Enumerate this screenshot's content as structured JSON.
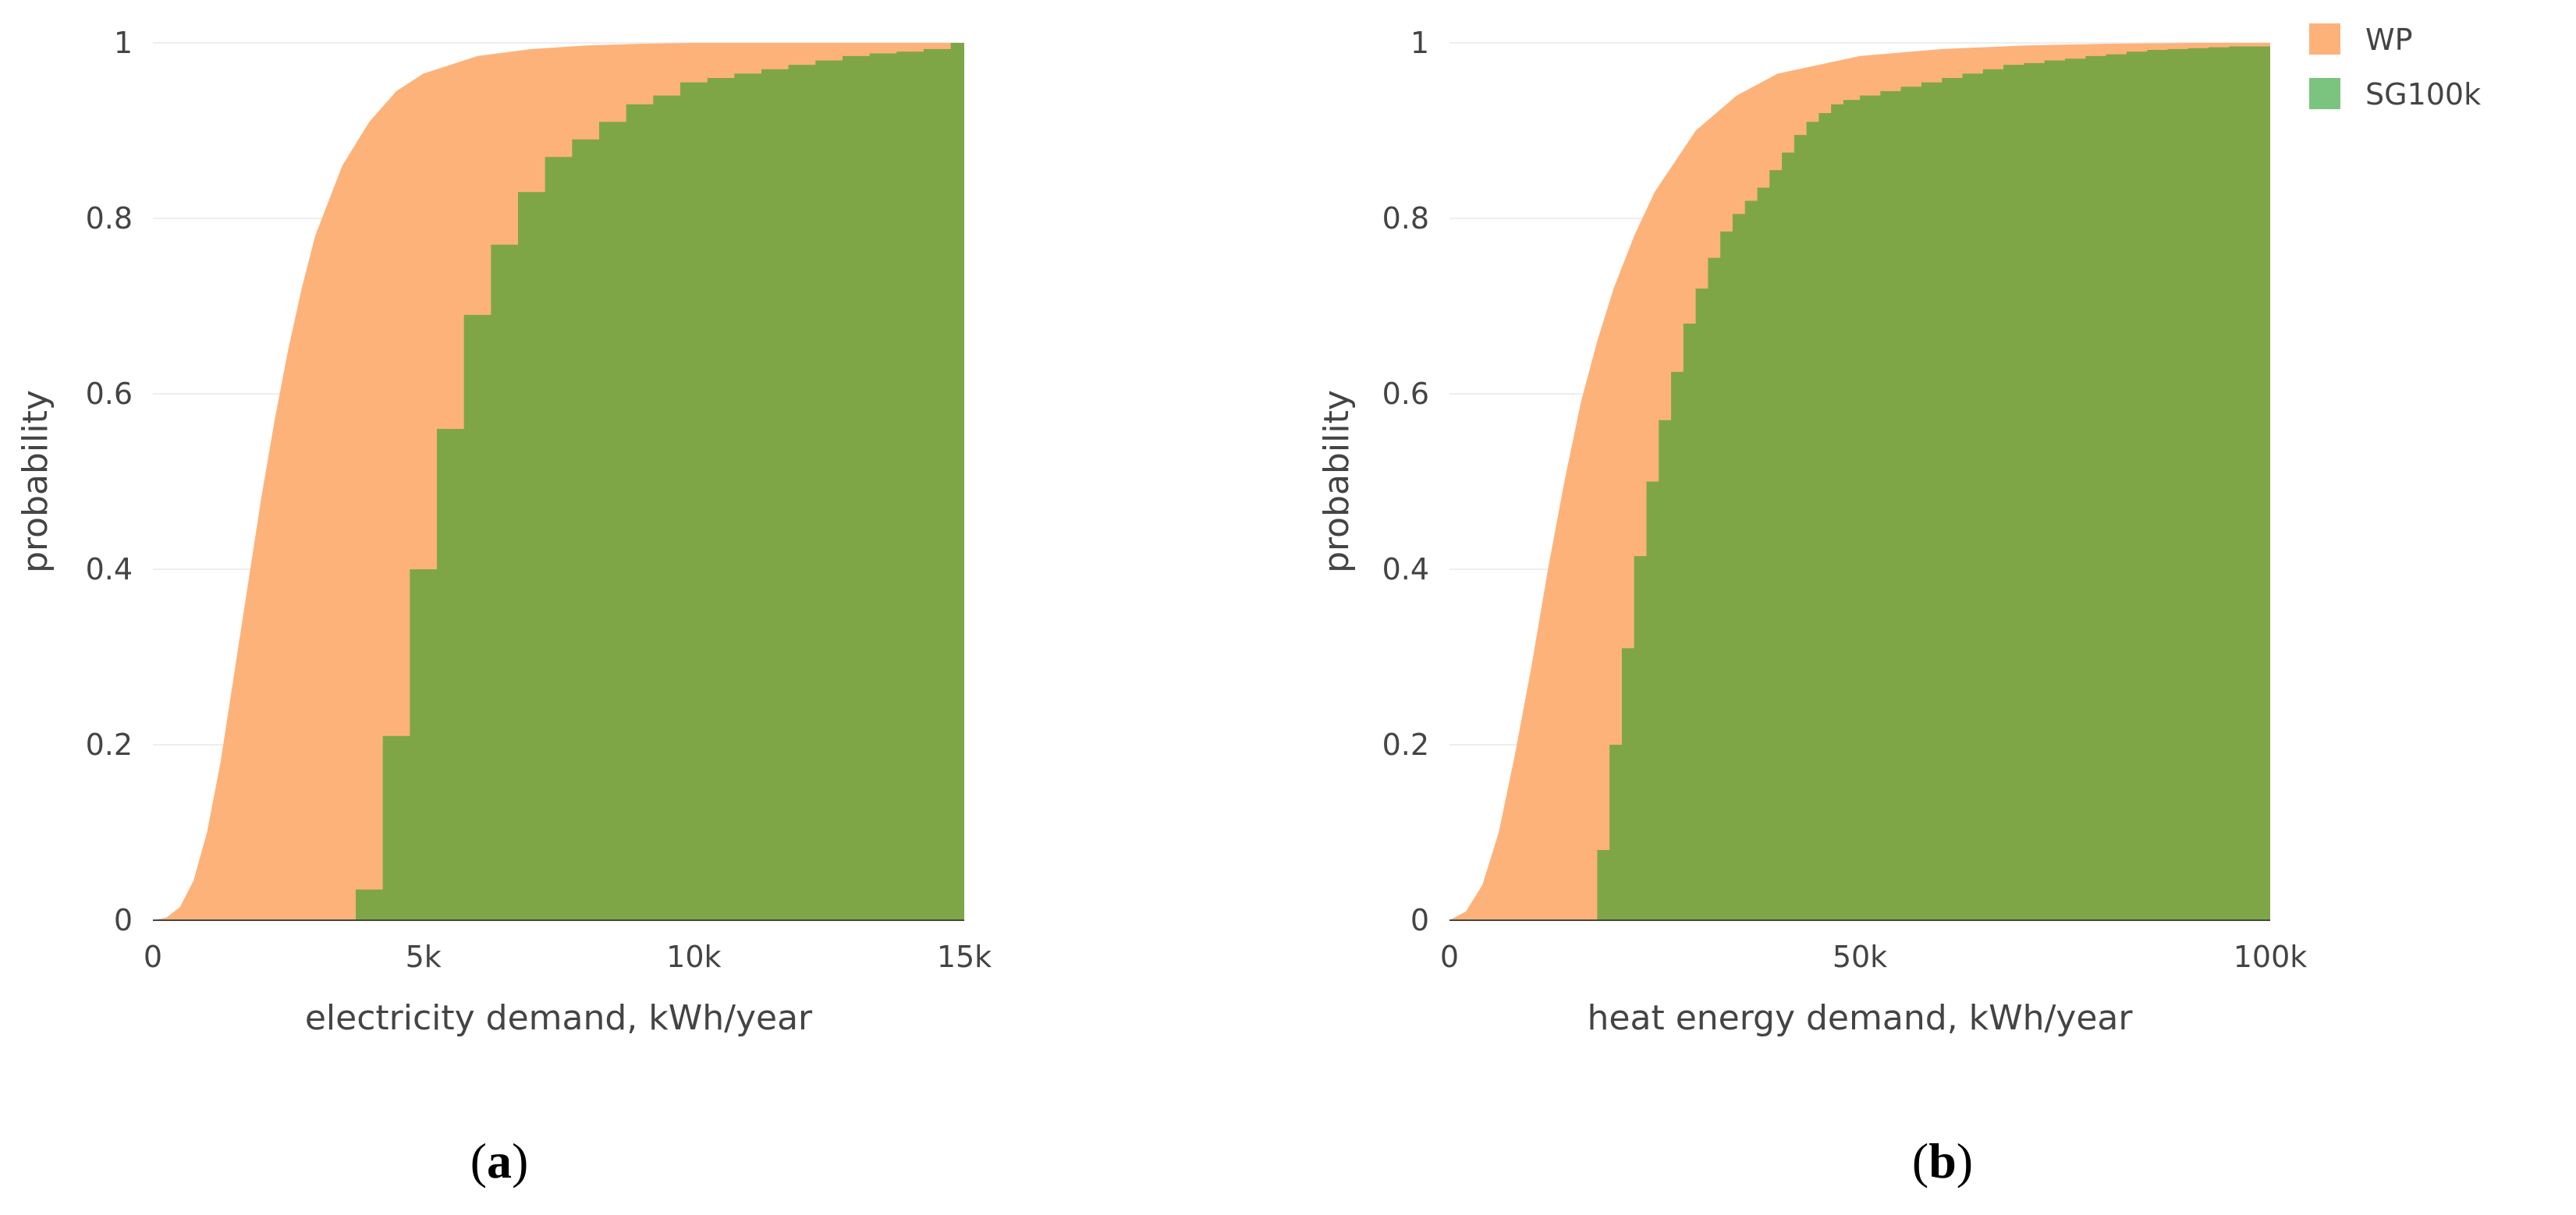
{
  "legend": [
    {
      "name": "WP",
      "color": "#fdb27a"
    },
    {
      "name": "SG100k",
      "color": "#7bc47f"
    }
  ],
  "colors": {
    "wp_fill": "#fdb27a",
    "sg_fill": "#7fa646",
    "grid": "#eeeeee",
    "axis": "#444444"
  },
  "chart_data": [
    {
      "type": "area",
      "panel_label": {
        "open": "(",
        "letter": "a",
        "close": ")"
      },
      "title": "",
      "xlabel": "electricity demand, kWh/year",
      "ylabel": "probability",
      "xlim": [
        0,
        15000
      ],
      "ylim": [
        0,
        1
      ],
      "x_ticks": [
        {
          "value": 0,
          "label": "0"
        },
        {
          "value": 5000,
          "label": "5k"
        },
        {
          "value": 10000,
          "label": "10k"
        },
        {
          "value": 15000,
          "label": "15k"
        }
      ],
      "y_ticks": [
        {
          "value": 0,
          "label": "0"
        },
        {
          "value": 0.2,
          "label": "0.2"
        },
        {
          "value": 0.4,
          "label": "0.4"
        },
        {
          "value": 0.6,
          "label": "0.6"
        },
        {
          "value": 0.8,
          "label": "0.8"
        },
        {
          "value": 1,
          "label": "1"
        }
      ],
      "grid": true,
      "series": [
        {
          "name": "WP",
          "style": "smooth",
          "x": [
            0,
            250,
            500,
            750,
            1000,
            1250,
            1500,
            1750,
            2000,
            2250,
            2500,
            2750,
            3000,
            3500,
            4000,
            4500,
            5000,
            6000,
            7000,
            8000,
            9000,
            10000,
            12000,
            15000
          ],
          "y": [
            0,
            0.003,
            0.015,
            0.045,
            0.1,
            0.18,
            0.28,
            0.38,
            0.48,
            0.57,
            0.65,
            0.72,
            0.78,
            0.86,
            0.91,
            0.945,
            0.965,
            0.985,
            0.993,
            0.997,
            0.999,
            1,
            1,
            1
          ]
        },
        {
          "name": "SG100k",
          "style": "step",
          "x": [
            3750,
            4250,
            4750,
            5250,
            5750,
            6250,
            6750,
            7250,
            7750,
            8250,
            8750,
            9250,
            9750,
            10250,
            10750,
            11250,
            11750,
            12250,
            12750,
            13250,
            13750,
            14250,
            14750,
            15000
          ],
          "y": [
            0.035,
            0.21,
            0.4,
            0.56,
            0.69,
            0.77,
            0.83,
            0.87,
            0.89,
            0.91,
            0.93,
            0.94,
            0.955,
            0.96,
            0.965,
            0.97,
            0.975,
            0.98,
            0.985,
            0.988,
            0.99,
            0.993,
            1.0,
            1.0
          ]
        }
      ]
    },
    {
      "type": "area",
      "panel_label": {
        "open": "(",
        "letter": "b",
        "close": ")"
      },
      "title": "",
      "xlabel": "heat energy demand, kWh/year",
      "ylabel": "probability",
      "xlim": [
        0,
        100000
      ],
      "ylim": [
        0,
        1
      ],
      "x_ticks": [
        {
          "value": 0,
          "label": "0"
        },
        {
          "value": 50000,
          "label": "50k"
        },
        {
          "value": 100000,
          "label": "100k"
        }
      ],
      "y_ticks": [
        {
          "value": 0,
          "label": "0"
        },
        {
          "value": 0.2,
          "label": "0.2"
        },
        {
          "value": 0.4,
          "label": "0.4"
        },
        {
          "value": 0.6,
          "label": "0.6"
        },
        {
          "value": 0.8,
          "label": "0.8"
        },
        {
          "value": 1,
          "label": "1"
        }
      ],
      "grid": true,
      "series": [
        {
          "name": "WP",
          "style": "smooth",
          "x": [
            0,
            2000,
            4000,
            6000,
            8000,
            10000,
            12000,
            14000,
            16000,
            18000,
            20000,
            22500,
            25000,
            30000,
            35000,
            40000,
            50000,
            60000,
            70000,
            80000,
            90000,
            100000
          ],
          "y": [
            0,
            0.01,
            0.04,
            0.1,
            0.19,
            0.29,
            0.4,
            0.5,
            0.59,
            0.66,
            0.72,
            0.78,
            0.83,
            0.9,
            0.94,
            0.965,
            0.985,
            0.993,
            0.997,
            0.999,
            1,
            1
          ]
        },
        {
          "name": "SG100k",
          "style": "step",
          "x": [
            18000,
            19500,
            21000,
            22500,
            24000,
            25500,
            27000,
            28500,
            30000,
            31500,
            33000,
            34500,
            36000,
            37500,
            39000,
            40500,
            42000,
            43500,
            45000,
            46500,
            48000,
            50000,
            52500,
            55000,
            57500,
            60000,
            62500,
            65000,
            67500,
            70000,
            72500,
            75000,
            77500,
            80000,
            82500,
            85000,
            87500,
            90000,
            92500,
            95000,
            100000
          ],
          "y": [
            0.08,
            0.2,
            0.31,
            0.415,
            0.5,
            0.57,
            0.625,
            0.68,
            0.72,
            0.755,
            0.785,
            0.805,
            0.82,
            0.835,
            0.855,
            0.875,
            0.895,
            0.91,
            0.92,
            0.93,
            0.935,
            0.94,
            0.945,
            0.95,
            0.955,
            0.96,
            0.965,
            0.97,
            0.975,
            0.977,
            0.98,
            0.982,
            0.985,
            0.987,
            0.99,
            0.992,
            0.993,
            0.994,
            0.995,
            0.996,
            0.997
          ]
        }
      ]
    }
  ]
}
